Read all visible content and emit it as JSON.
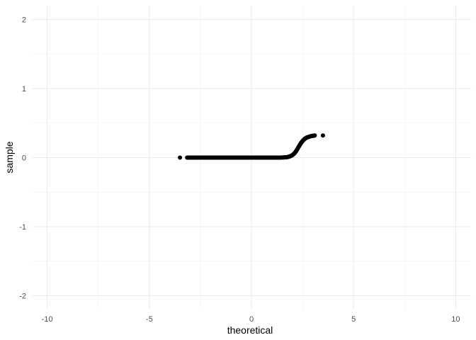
{
  "chart_data": {
    "type": "scatter",
    "title": "",
    "xlabel": "theoretical",
    "ylabel": "sample",
    "xlim": [
      -10.75,
      10.75
    ],
    "ylim": [
      -2.2,
      2.2
    ],
    "x_ticks": [
      -10,
      -5,
      0,
      5,
      10
    ],
    "x_tick_labels": [
      "-10",
      "-5",
      "0",
      "5",
      "10"
    ],
    "y_ticks": [
      -2,
      -1,
      0,
      1,
      2
    ],
    "y_tick_labels": [
      "-2",
      "-1",
      "0",
      "1",
      "2"
    ],
    "x_minor_ticks": [
      -7.5,
      -2.5,
      2.5,
      7.5
    ],
    "y_minor_ticks": [
      -1.5,
      -0.5,
      0.5,
      1.5
    ],
    "grid": true,
    "legend": "none",
    "point_color": "#000000",
    "series": [
      {
        "points": [
          [
            -3.5,
            0.0
          ],
          [
            -3.15,
            0.0
          ],
          [
            -3.0,
            0.0
          ],
          [
            -2.9,
            0.0
          ],
          [
            -2.8,
            0.0
          ],
          [
            -2.6,
            0.0
          ],
          [
            -2.4,
            0.0
          ],
          [
            -2.2,
            0.0
          ],
          [
            -2.0,
            0.0
          ],
          [
            -1.8,
            0.0
          ],
          [
            -1.6,
            0.0
          ],
          [
            -1.4,
            0.0
          ],
          [
            -1.2,
            0.0
          ],
          [
            -1.0,
            0.0
          ],
          [
            -0.8,
            0.0
          ],
          [
            -0.6,
            0.0
          ],
          [
            -0.4,
            0.0
          ],
          [
            -0.2,
            0.0
          ],
          [
            0.0,
            0.0
          ],
          [
            0.2,
            0.0
          ],
          [
            0.4,
            0.0
          ],
          [
            0.6,
            0.0
          ],
          [
            0.8,
            0.0
          ],
          [
            1.0,
            0.0
          ],
          [
            1.2,
            0.0
          ],
          [
            1.4,
            0.0
          ],
          [
            1.6,
            0.003
          ],
          [
            1.7,
            0.005
          ],
          [
            1.8,
            0.01
          ],
          [
            1.9,
            0.02
          ],
          [
            2.0,
            0.035
          ],
          [
            2.1,
            0.06
          ],
          [
            2.2,
            0.1
          ],
          [
            2.3,
            0.15
          ],
          [
            2.4,
            0.2
          ],
          [
            2.5,
            0.24
          ],
          [
            2.6,
            0.27
          ],
          [
            2.7,
            0.29
          ],
          [
            2.8,
            0.3
          ],
          [
            2.9,
            0.31
          ],
          [
            3.0,
            0.315
          ],
          [
            3.1,
            0.32
          ],
          [
            3.5,
            0.32
          ]
        ]
      }
    ]
  }
}
